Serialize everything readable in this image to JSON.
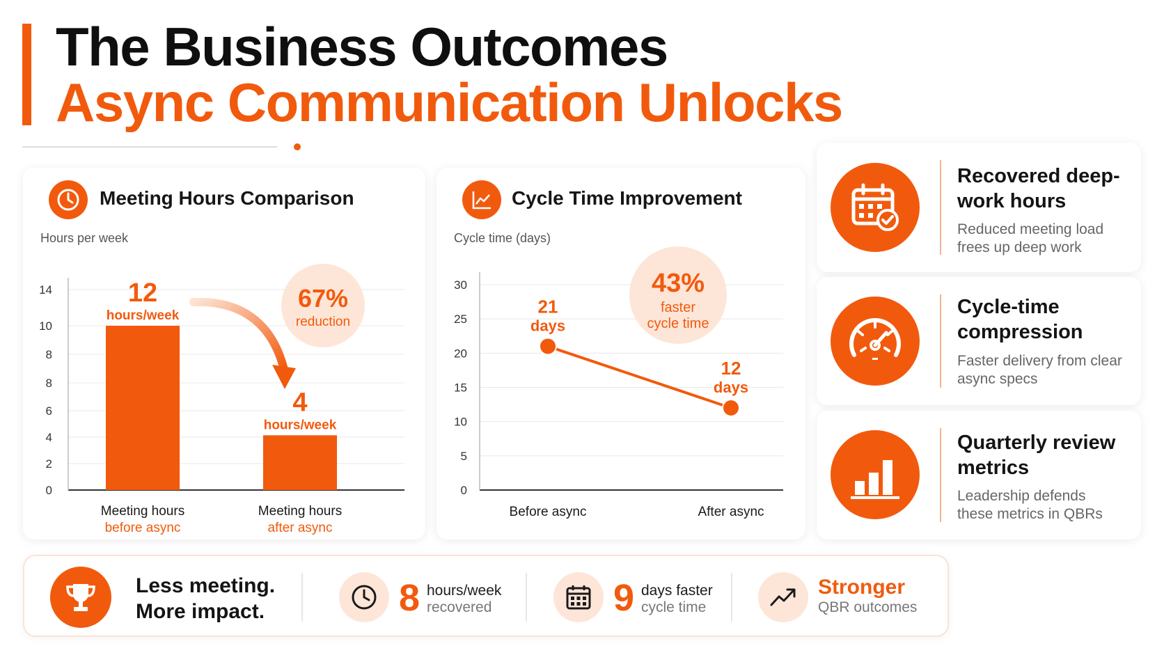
{
  "title": {
    "line1": "The Business Outcomes",
    "line2": "Async Communication Unlocks"
  },
  "meeting_card": {
    "title": "Meeting Hours Comparison",
    "icon": "clock-icon",
    "callout_value": "67%",
    "callout_label": "reduction"
  },
  "cycle_card": {
    "title": "Cycle Time Improvement",
    "icon": "line-chart-icon",
    "callout_value": "43%",
    "callout_label_1": "faster",
    "callout_label_2": "cycle time"
  },
  "chart_data": [
    {
      "type": "bar",
      "ylabel": "Hours per week",
      "yticks": [
        "0",
        "2",
        "4",
        "6",
        "8",
        "8",
        "10",
        "14"
      ],
      "ylim": [
        0,
        14
      ],
      "categories": [
        {
          "line1": "Meeting hours",
          "line2": "before async"
        },
        {
          "line1": "Meeting hours",
          "line2": "after async"
        }
      ],
      "values": [
        12,
        4
      ],
      "value_labels": [
        {
          "number": "12",
          "unit": "hours/week"
        },
        {
          "number": "4",
          "unit": "hours/week"
        }
      ],
      "grid": true
    },
    {
      "type": "line",
      "ylabel": "Cycle time (days)",
      "yticks": [
        "0",
        "5",
        "10",
        "15",
        "20",
        "25",
        "30"
      ],
      "ylim": [
        0,
        30
      ],
      "categories": [
        "Before async",
        "After async"
      ],
      "values": [
        21,
        12
      ],
      "value_labels": [
        {
          "number": "21",
          "unit": "days"
        },
        {
          "number": "12",
          "unit": "days"
        }
      ],
      "grid": true
    }
  ],
  "side_cards": [
    {
      "icon": "calendar-check-icon",
      "title": "Recovered deep-work hours",
      "desc": "Reduced meeting load frees up deep work"
    },
    {
      "icon": "speedometer-icon",
      "title": "Cycle-time compression",
      "desc": "Faster delivery from clear async specs"
    },
    {
      "icon": "bar-chart-icon",
      "title": "Quarterly review metrics",
      "desc": "Leadership defends these metrics in QBRs"
    }
  ],
  "summary": {
    "icon": "trophy-icon",
    "line1": "Less meeting.",
    "line2": "More impact.",
    "stats": [
      {
        "icon": "clock-icon",
        "number": "8",
        "main": "hours/week",
        "sub": "recovered"
      },
      {
        "icon": "calendar-icon",
        "number": "9",
        "main": "days faster",
        "sub": "cycle time"
      },
      {
        "icon": "trend-up-icon",
        "highlight": "Stronger",
        "sub": "QBR outcomes"
      }
    ]
  },
  "colors": {
    "accent": "#f15a0d",
    "accent_light": "#fde6d8",
    "text": "#1a1a1a",
    "muted": "#666666"
  }
}
